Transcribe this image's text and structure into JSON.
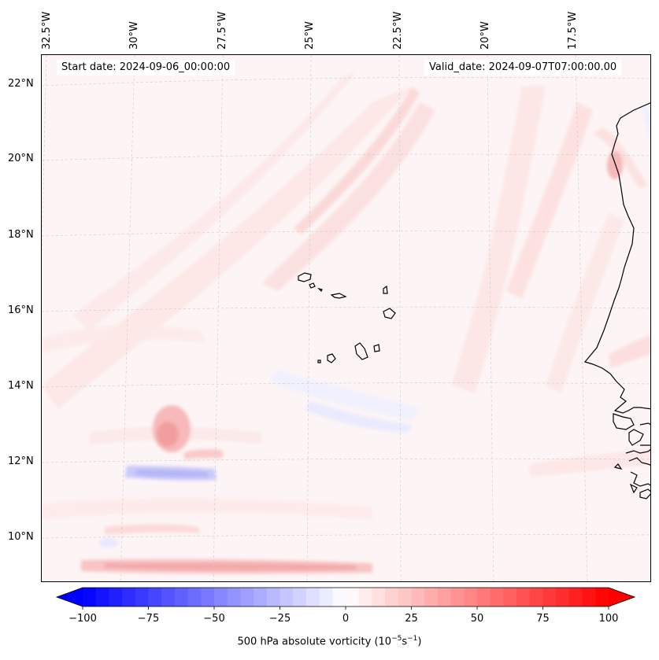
{
  "map": {
    "start_date_label": "Start date: 2024-09-06_00:00:00",
    "valid_date_label": "Valid_date: 2024-09-07T07:00:00.00",
    "longitude_labels": [
      "32.5°W",
      "30°W",
      "27.5°W",
      "25°W",
      "22.5°W",
      "20°W",
      "17.5°W"
    ],
    "latitude_labels": [
      "22°N",
      "20°N",
      "18°N",
      "16°N",
      "14°N",
      "12°N",
      "10°N"
    ],
    "field": "500 hPa absolute vorticity",
    "features": [
      "Cape Verde islands",
      "West African coastline"
    ]
  },
  "colorbar": {
    "label_prefix": "500 hPa absolute vorticity (10",
    "label_exp1": "−5",
    "label_mid": "s",
    "label_exp2": "−1",
    "label_suffix": ")",
    "ticks": [
      "−100",
      "−75",
      "−50",
      "−25",
      "0",
      "25",
      "50",
      "75",
      "100"
    ],
    "min": -100,
    "max": 100,
    "colormap": "bwr",
    "extend": "both"
  },
  "colors": {
    "negative": "#0000ff",
    "zero": "#ffffff",
    "positive": "#ff0000",
    "coastline": "#000000"
  }
}
